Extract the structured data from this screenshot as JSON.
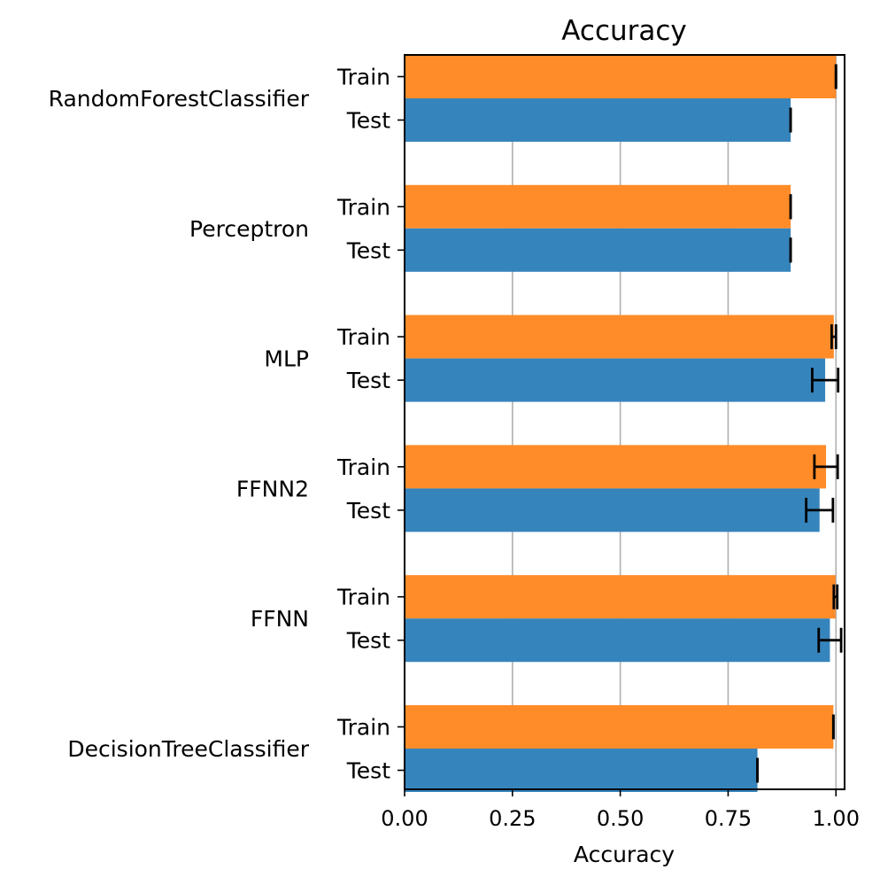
{
  "chart_data": {
    "type": "bar",
    "orientation": "horizontal",
    "title": "Accuracy",
    "xlabel": "Accuracy",
    "ylabel": "",
    "xlim": [
      0,
      1.02
    ],
    "x_ticks": [
      0.0,
      0.25,
      0.5,
      0.75,
      1.0
    ],
    "x_tick_labels": [
      "0.00",
      "0.25",
      "0.50",
      "0.75",
      "1.00"
    ],
    "grid": "x",
    "models": [
      "RandomForestClassifier",
      "Perceptron",
      "MLP",
      "FFNN2",
      "FFNN",
      "DecisionTreeClassifier"
    ],
    "series": [
      {
        "name": "Train",
        "color": "#ff8c28",
        "values": [
          1.0,
          0.895,
          0.995,
          0.977,
          0.999,
          0.994
        ],
        "error": [
          0.0,
          0.0,
          0.005,
          0.027,
          0.004,
          0.0
        ]
      },
      {
        "name": "Test",
        "color": "#3684bc",
        "values": [
          0.895,
          0.895,
          0.975,
          0.962,
          0.986,
          0.818
        ],
        "error": [
          0.0,
          0.0,
          0.03,
          0.031,
          0.026,
          0.0
        ]
      }
    ]
  }
}
